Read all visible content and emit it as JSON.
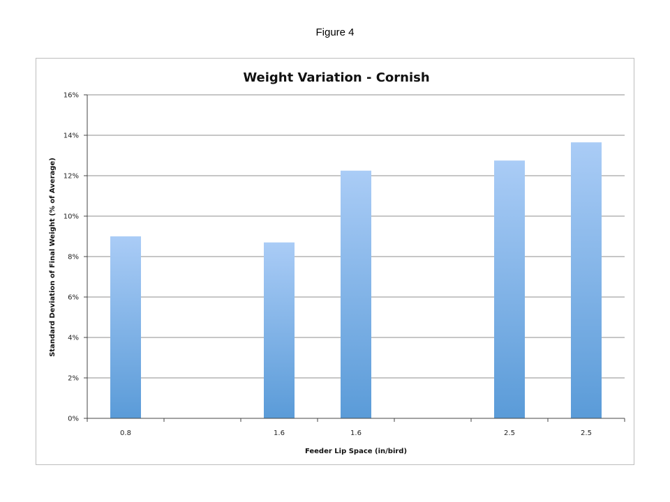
{
  "figure_label": "Figure 4",
  "chart_data": {
    "type": "bar",
    "title": "Weight Variation - Cornish",
    "xlabel": "Feeder Lip Space (in/bird)",
    "ylabel": "Standard Deviation of Final Weight (% of Average)",
    "slots": 7,
    "categories": [
      "0.8",
      "1.6",
      "1.6",
      "2.5",
      "2.5"
    ],
    "slot_index": [
      0,
      2,
      3,
      5,
      6
    ],
    "values": [
      9.0,
      8.7,
      12.25,
      12.75,
      13.65
    ],
    "ylim": [
      0,
      16
    ],
    "yticks": [
      0,
      2,
      4,
      6,
      8,
      10,
      12,
      14,
      16
    ],
    "ytick_labels": [
      "0%",
      "2%",
      "4%",
      "6%",
      "8%",
      "10%",
      "12%",
      "14%",
      "16%"
    ],
    "grid": true,
    "legend": "none",
    "colors": {
      "bar_top": "#aaccf6",
      "bar_bottom": "#5a9bd8",
      "grid": "#8c8c8c"
    }
  }
}
